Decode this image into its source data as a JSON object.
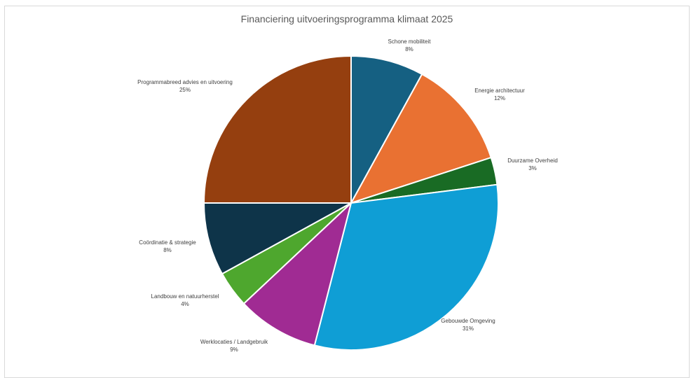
{
  "chart_data": {
    "type": "pie",
    "title": "Financiering uitvoeringsprogramma klimaat 2025",
    "slices": [
      {
        "label": "Schone mobiliteit",
        "value": 8,
        "value_label": "8%",
        "color": "#156082"
      },
      {
        "label": "Energie architectuur",
        "value": 12,
        "value_label": "12%",
        "color": "#E97132"
      },
      {
        "label": "Duurzame Overheid",
        "value": 3,
        "value_label": "3%",
        "color": "#196B24"
      },
      {
        "label": "Gebouwde Omgeving",
        "value": 31,
        "value_label": "31%",
        "color": "#0F9ED5"
      },
      {
        "label": "Werklocaties / Landgebruik",
        "value": 9,
        "value_label": "9%",
        "color": "#A02B93"
      },
      {
        "label": "Landbouw en natuurherstel",
        "value": 4,
        "value_label": "4%",
        "color": "#4EA72E"
      },
      {
        "label": "Coördinatie & strategie",
        "value": 8,
        "value_label": "8%",
        "color": "#0E3449"
      },
      {
        "label": "Programmabreed advies en uitvoering",
        "value": 25,
        "value_label": "25%",
        "color": "#953F0F"
      }
    ],
    "legend": "none",
    "start_angle": "12 o'clock",
    "direction": "clockwise"
  }
}
